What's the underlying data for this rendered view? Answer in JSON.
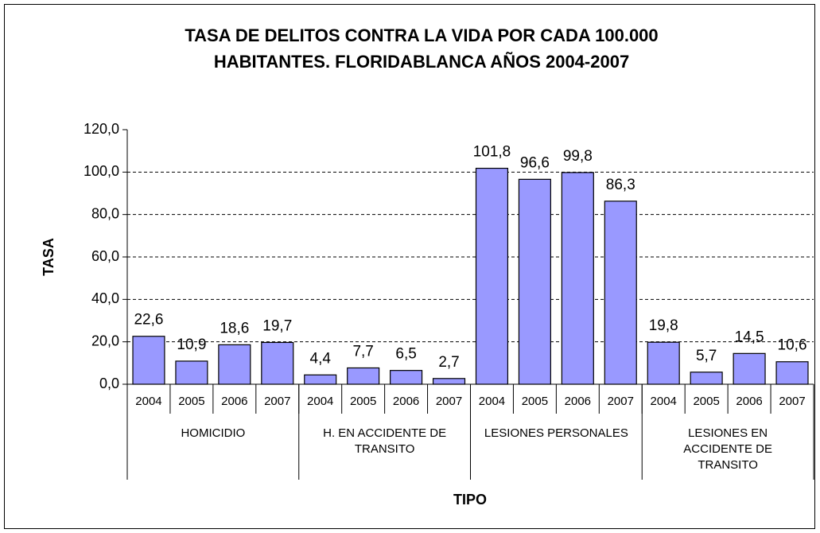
{
  "chart_data": {
    "type": "bar",
    "title": [
      "TASA DE DELITOS CONTRA LA VIDA POR CADA 100.000",
      "HABITANTES. FLORIDABLANCA AÑOS 2004-2007"
    ],
    "y_label": "TASA",
    "x_label": "TIPO",
    "categories": [
      "2004",
      "2005",
      "2006",
      "2007",
      "2004",
      "2005",
      "2006",
      "2007",
      "2004",
      "2005",
      "2006",
      "2007",
      "2004",
      "2005",
      "2006",
      "2007"
    ],
    "groups": [
      {
        "label": [
          "HOMICIDIO"
        ],
        "size": 4
      },
      {
        "label": [
          "H. EN ACCIDENTE DE",
          "TRANSITO"
        ],
        "size": 4
      },
      {
        "label": [
          "LESIONES PERSONALES"
        ],
        "size": 4
      },
      {
        "label": [
          "LESIONES EN",
          "ACCIDENTE DE",
          "TRANSITO"
        ],
        "size": 4
      }
    ],
    "values": [
      22.6,
      10.9,
      18.6,
      19.7,
      4.4,
      7.7,
      6.5,
      2.7,
      101.8,
      96.6,
      99.8,
      86.3,
      19.8,
      5.7,
      14.5,
      10.6
    ],
    "value_labels": [
      "22,6",
      "10,9",
      "18,6",
      "19,7",
      "4,4",
      "7,7",
      "6,5",
      "2,7",
      "101,8",
      "96,6",
      "99,8",
      "86,3",
      "19,8",
      "5,7",
      "14,5",
      "10,6"
    ],
    "color": "#9999ff",
    "ylim": [
      0,
      120
    ],
    "yticks": [
      {
        "value": 0,
        "label": "0,0"
      },
      {
        "value": 20,
        "label": "20,0"
      },
      {
        "value": 40,
        "label": "40,0"
      },
      {
        "value": 60,
        "label": "60,0"
      },
      {
        "value": 80,
        "label": "80,0"
      },
      {
        "value": 100,
        "label": "100,0"
      },
      {
        "value": 120,
        "label": "120,0"
      }
    ],
    "grid": true
  }
}
